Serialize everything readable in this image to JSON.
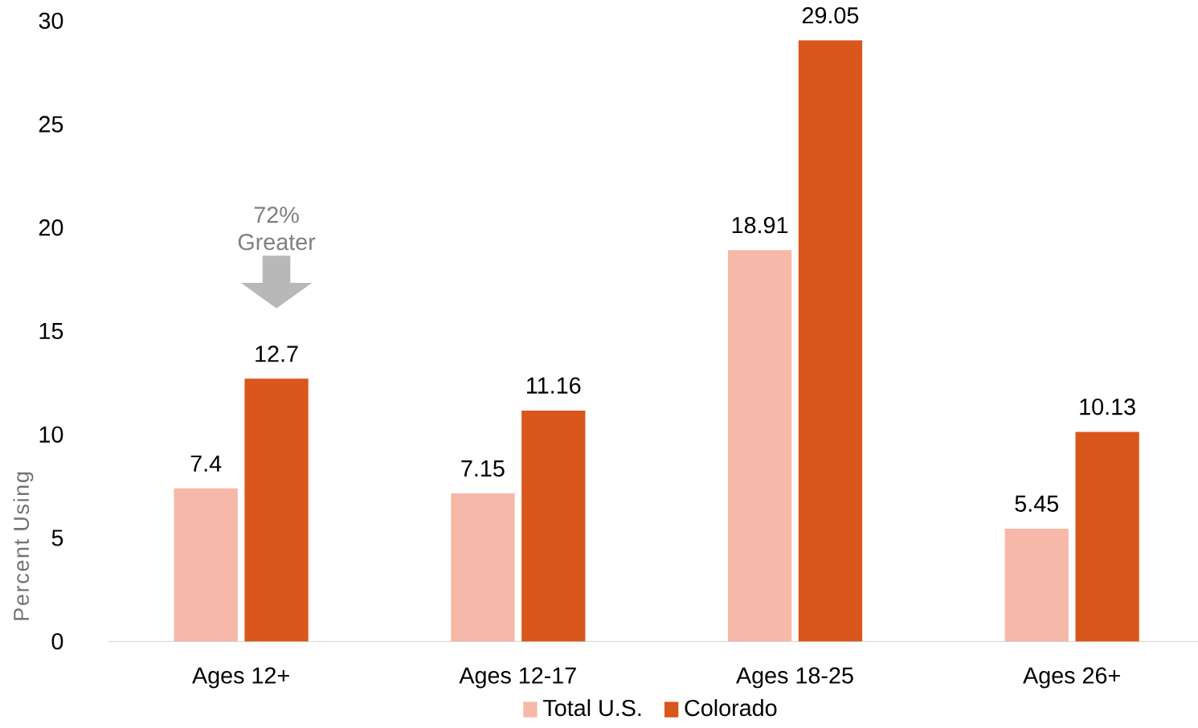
{
  "chart_data": {
    "type": "bar",
    "ylabel": "Percent Using",
    "categories": [
      "Ages 12+",
      "Ages 12-17",
      "Ages 18-25",
      "Ages 26+"
    ],
    "series": [
      {
        "name": "Total U.S.",
        "color": "#f6b8a8",
        "values": [
          7.4,
          7.15,
          18.91,
          5.45
        ]
      },
      {
        "name": "Colorado",
        "color": "#d9561c",
        "values": [
          12.7,
          11.16,
          29.05,
          10.13
        ]
      }
    ],
    "ylim": [
      0,
      30
    ],
    "yticks": [
      0,
      5,
      10,
      15,
      20,
      25,
      30
    ],
    "data_labels": true,
    "legend": "bottom",
    "annotations": [
      "72% Greater"
    ]
  }
}
